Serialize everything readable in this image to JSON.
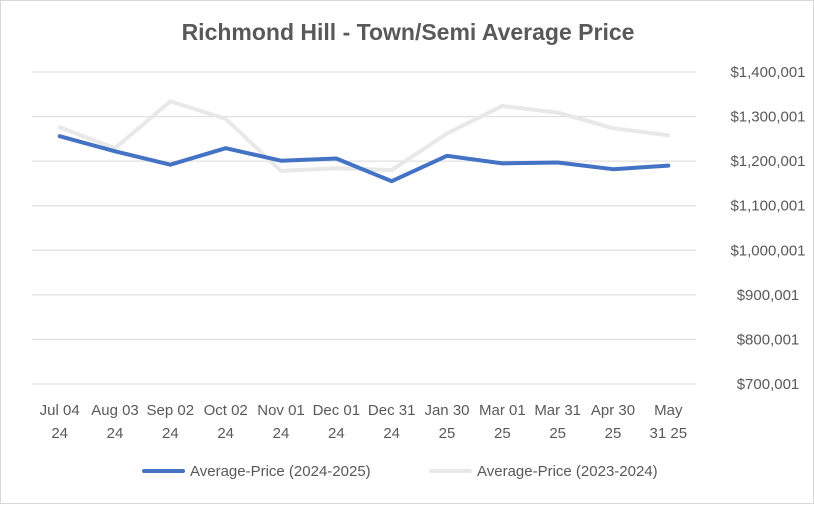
{
  "chart_data": {
    "type": "line",
    "title": "Richmond Hill - Town/Semi Average Price",
    "categories": [
      [
        "Jul 04",
        "24"
      ],
      [
        "Aug 03",
        "24"
      ],
      [
        "Sep 02",
        "24"
      ],
      [
        "Oct 02",
        "24"
      ],
      [
        "Nov 01",
        "24"
      ],
      [
        "Dec 01",
        "24"
      ],
      [
        "Dec 31",
        "24"
      ],
      [
        "Jan 30",
        "25"
      ],
      [
        "Mar 01",
        "25"
      ],
      [
        "Mar 31",
        "25"
      ],
      [
        "Apr 30",
        "25"
      ],
      [
        "May",
        "31 25"
      ]
    ],
    "y_ticks": [
      "$700,001",
      "$800,001",
      "$900,001",
      "$1,000,001",
      "$1,100,001",
      "$1,200,001",
      "$1,300,001",
      "$1,400,001"
    ],
    "ylim": [
      700001,
      1400001
    ],
    "y_axis_side": "right",
    "grid": true,
    "legend_position": "bottom",
    "series": [
      {
        "name": "Average-Price (2024-2025)",
        "color": "#4472c4",
        "values": [
          1256000,
          1222000,
          1192000,
          1229000,
          1201000,
          1206000,
          1155000,
          1212000,
          1195000,
          1197000,
          1182000,
          1190000
        ]
      },
      {
        "name": "Average-Price (2023-2024)",
        "color": "#e8e8e8",
        "values": [
          1276000,
          1229000,
          1334000,
          1295000,
          1178000,
          1184000,
          1180000,
          1262000,
          1324000,
          1309000,
          1274000,
          1258000
        ]
      }
    ]
  }
}
